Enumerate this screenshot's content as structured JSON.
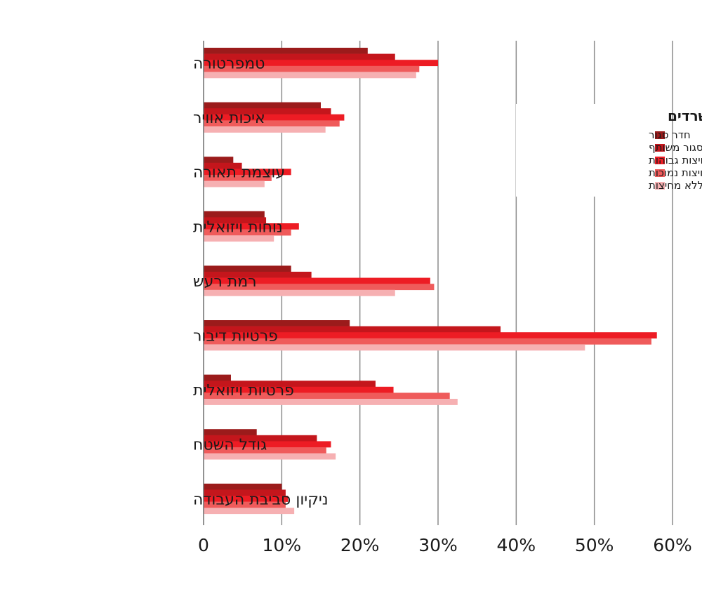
{
  "chart_data": {
    "type": "bar",
    "orientation": "horizontal",
    "categories": [
      "טמפרטורה",
      "איכות אוויר",
      "עוצמת תאורה",
      "נוחות ויזואלית",
      "רמת רעש",
      "פרטיות דיבור",
      "פרטיות ויזואלית",
      "גודל השטח",
      "ניקיון סביבת העבודה"
    ],
    "series": [
      {
        "name": "חדר סגור",
        "color": "#9b1b1b",
        "values": [
          21,
          15,
          3.8,
          7.8,
          11.2,
          18.7,
          3.5,
          6.8,
          10.0
        ]
      },
      {
        "name": "חדר סגור משותף",
        "color": "#c4161c",
        "values": [
          24.5,
          16.3,
          4.9,
          8.0,
          13.8,
          38.0,
          22.0,
          14.5,
          10.5
        ]
      },
      {
        "name": "תאי עבודה עם מחיצות גבוהות",
        "color": "#ed1c24",
        "values": [
          30,
          18.0,
          11.2,
          12.2,
          29.0,
          58.0,
          24.3,
          16.3,
          10.8
        ]
      },
      {
        "name": "תאי עבודה עם מחיצות נמוכות",
        "color": "#ef5b5b",
        "values": [
          27.6,
          17.4,
          8.7,
          11.2,
          29.5,
          57.3,
          31.5,
          15.7,
          10.5
        ]
      },
      {
        "name": "חלל פתוח ללא מחיצות",
        "color": "#f6b0b2",
        "values": [
          27.2,
          15.6,
          7.8,
          9.0,
          24.5,
          48.8,
          32.5,
          16.9,
          11.6
        ]
      }
    ],
    "xlim": [
      0,
      60
    ],
    "xticks": [
      "0",
      "10%",
      "20%",
      "30%",
      "40%",
      "50%",
      "60%"
    ],
    "grid": "vertical",
    "legend": {
      "title": "סוגי משרדים",
      "placement": "top-right"
    }
  }
}
